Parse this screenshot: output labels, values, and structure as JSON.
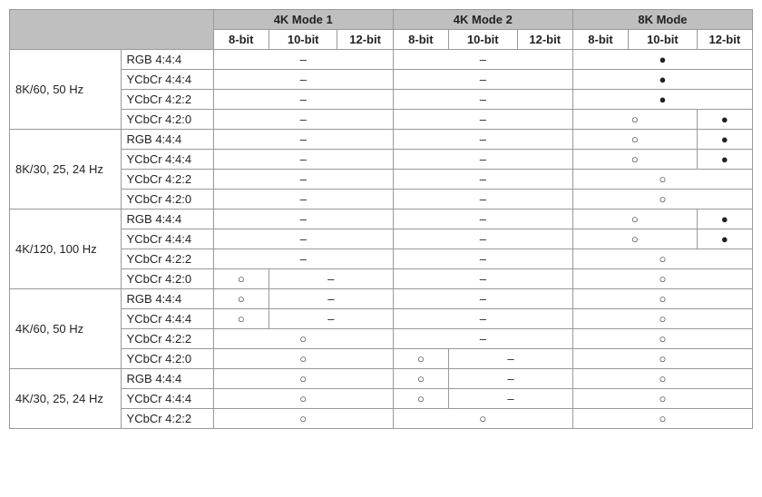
{
  "header": {
    "modes": [
      "4K Mode 1",
      "4K Mode 2",
      "8K Mode"
    ],
    "bits": [
      "8-bit",
      "10-bit",
      "12-bit"
    ]
  },
  "symbols": {
    "dash": "–",
    "empty_circle": "○",
    "filled_circle": "●"
  },
  "resolutions": [
    {
      "label": "8K/60, 50 Hz",
      "rows": [
        {
          "fmt": "RGB 4:4:4",
          "m1": {
            "type": "span3",
            "val": "dash"
          },
          "m2": {
            "type": "span3",
            "val": "dash"
          },
          "m3": {
            "type": "span3",
            "val": "filled_circle"
          }
        },
        {
          "fmt": "YCbCr 4:4:4",
          "m1": {
            "type": "span3",
            "val": "dash"
          },
          "m2": {
            "type": "span3",
            "val": "dash"
          },
          "m3": {
            "type": "span3",
            "val": "filled_circle"
          }
        },
        {
          "fmt": "YCbCr 4:2:2",
          "m1": {
            "type": "span3",
            "val": "dash"
          },
          "m2": {
            "type": "span3",
            "val": "dash"
          },
          "m3": {
            "type": "span3",
            "val": "filled_circle"
          }
        },
        {
          "fmt": "YCbCr 4:2:0",
          "m1": {
            "type": "span3",
            "val": "dash"
          },
          "m2": {
            "type": "span3",
            "val": "dash"
          },
          "m3": {
            "type": "split2_1",
            "left": "empty_circle",
            "right": "filled_circle"
          }
        }
      ]
    },
    {
      "label": "8K/30, 25, 24 Hz",
      "rows": [
        {
          "fmt": "RGB 4:4:4",
          "m1": {
            "type": "span3",
            "val": "dash"
          },
          "m2": {
            "type": "span3",
            "val": "dash"
          },
          "m3": {
            "type": "split2_1",
            "left": "empty_circle",
            "right": "filled_circle"
          }
        },
        {
          "fmt": "YCbCr 4:4:4",
          "m1": {
            "type": "span3",
            "val": "dash"
          },
          "m2": {
            "type": "span3",
            "val": "dash"
          },
          "m3": {
            "type": "split2_1",
            "left": "empty_circle",
            "right": "filled_circle"
          }
        },
        {
          "fmt": "YCbCr 4:2:2",
          "m1": {
            "type": "span3",
            "val": "dash"
          },
          "m2": {
            "type": "span3",
            "val": "dash"
          },
          "m3": {
            "type": "span3",
            "val": "empty_circle"
          }
        },
        {
          "fmt": "YCbCr 4:2:0",
          "m1": {
            "type": "span3",
            "val": "dash"
          },
          "m2": {
            "type": "span3",
            "val": "dash"
          },
          "m3": {
            "type": "span3",
            "val": "empty_circle"
          }
        }
      ]
    },
    {
      "label": "4K/120, 100 Hz",
      "rows": [
        {
          "fmt": "RGB 4:4:4",
          "m1": {
            "type": "span3",
            "val": "dash"
          },
          "m2": {
            "type": "span3",
            "val": "dash"
          },
          "m3": {
            "type": "split2_1",
            "left": "empty_circle",
            "right": "filled_circle"
          }
        },
        {
          "fmt": "YCbCr 4:4:4",
          "m1": {
            "type": "span3",
            "val": "dash"
          },
          "m2": {
            "type": "span3",
            "val": "dash"
          },
          "m3": {
            "type": "split2_1",
            "left": "empty_circle",
            "right": "filled_circle"
          }
        },
        {
          "fmt": "YCbCr 4:2:2",
          "m1": {
            "type": "span3",
            "val": "dash"
          },
          "m2": {
            "type": "span3",
            "val": "dash"
          },
          "m3": {
            "type": "span3",
            "val": "empty_circle"
          }
        },
        {
          "fmt": "YCbCr 4:2:0",
          "m1": {
            "type": "split1_2",
            "left": "empty_circle",
            "right": "dash"
          },
          "m2": {
            "type": "span3",
            "val": "dash"
          },
          "m3": {
            "type": "span3",
            "val": "empty_circle"
          }
        }
      ]
    },
    {
      "label": "4K/60, 50 Hz",
      "rows": [
        {
          "fmt": "RGB 4:4:4",
          "m1": {
            "type": "split1_2",
            "left": "empty_circle",
            "right": "dash"
          },
          "m2": {
            "type": "span3",
            "val": "dash"
          },
          "m3": {
            "type": "span3",
            "val": "empty_circle"
          }
        },
        {
          "fmt": "YCbCr 4:4:4",
          "m1": {
            "type": "split1_2",
            "left": "empty_circle",
            "right": "dash"
          },
          "m2": {
            "type": "span3",
            "val": "dash"
          },
          "m3": {
            "type": "span3",
            "val": "empty_circle"
          }
        },
        {
          "fmt": "YCbCr 4:2:2",
          "m1": {
            "type": "span3",
            "val": "empty_circle"
          },
          "m2": {
            "type": "span3",
            "val": "dash"
          },
          "m3": {
            "type": "span3",
            "val": "empty_circle"
          }
        },
        {
          "fmt": "YCbCr 4:2:0",
          "m1": {
            "type": "span3",
            "val": "empty_circle"
          },
          "m2": {
            "type": "split1_2",
            "left": "empty_circle",
            "right": "dash"
          },
          "m3": {
            "type": "span3",
            "val": "empty_circle"
          }
        }
      ]
    },
    {
      "label": "4K/30, 25, 24 Hz",
      "rows": [
        {
          "fmt": "RGB 4:4:4",
          "m1": {
            "type": "span3",
            "val": "empty_circle"
          },
          "m2": {
            "type": "split1_2",
            "left": "empty_circle",
            "right": "dash"
          },
          "m3": {
            "type": "span3",
            "val": "empty_circle"
          }
        },
        {
          "fmt": "YCbCr 4:4:4",
          "m1": {
            "type": "span3",
            "val": "empty_circle"
          },
          "m2": {
            "type": "split1_2",
            "left": "empty_circle",
            "right": "dash"
          },
          "m3": {
            "type": "span3",
            "val": "empty_circle"
          }
        },
        {
          "fmt": "YCbCr 4:2:2",
          "m1": {
            "type": "span3",
            "val": "empty_circle"
          },
          "m2": {
            "type": "span3",
            "val": "empty_circle"
          },
          "m3": {
            "type": "span3",
            "val": "empty_circle"
          }
        }
      ]
    }
  ]
}
